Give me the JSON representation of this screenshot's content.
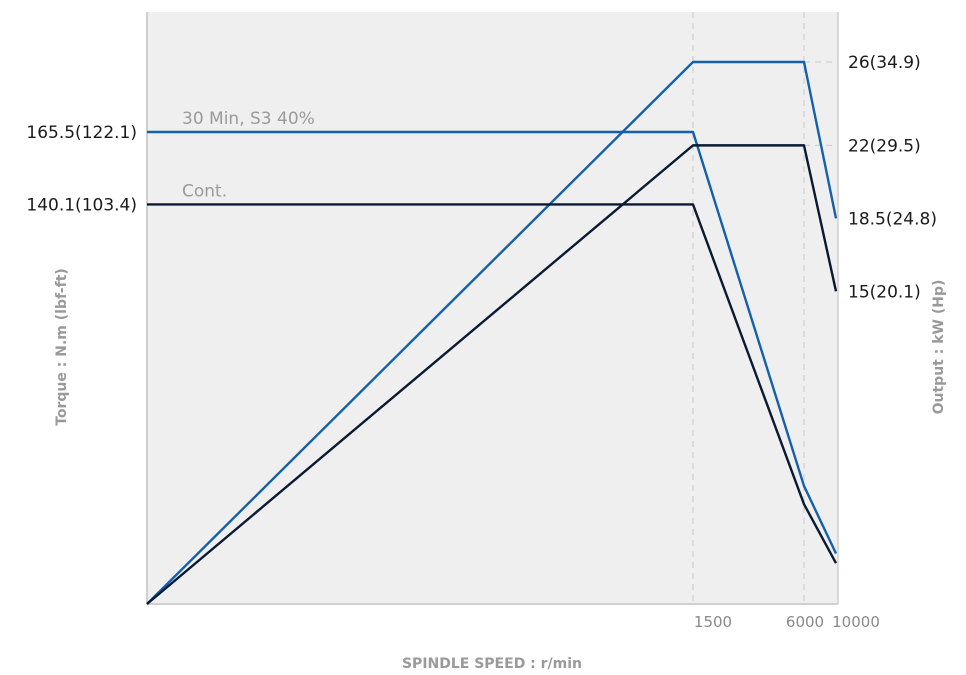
{
  "chart_data": {
    "type": "line",
    "title": "",
    "xlabel": "SPINDLE SPEED : r/min",
    "ylabel_left": "Torque : N.m (lbf-ft)",
    "ylabel_right": "Output : kW (Hp)",
    "x_tick_labels": [
      "1500",
      "6000",
      "10000"
    ],
    "grid": false,
    "series": [
      {
        "name": "30 Min, S3 40%",
        "color": "#1460aa",
        "torque_label": "165.5(122.1)",
        "output_labels": [
          "26(34.9)",
          "18.5(24.8)"
        ],
        "torque": {
          "x": [
            0,
            1500,
            6000,
            10000
          ],
          "y": [
            165.5,
            165.5,
            41.4,
            17.7
          ]
        },
        "output": {
          "x": [
            0,
            1500,
            6000,
            10000
          ],
          "y": [
            0,
            26,
            26,
            18.5
          ]
        }
      },
      {
        "name": "Cont.",
        "color": "#0b1a33",
        "torque_label": "140.1(103.4)",
        "output_labels": [
          "22(29.5)",
          "15(20.1)"
        ],
        "torque": {
          "x": [
            0,
            1500,
            6000,
            10000
          ],
          "y": [
            140.1,
            140.1,
            35.0,
            14.3
          ]
        },
        "output": {
          "x": [
            0,
            1500,
            6000,
            10000
          ],
          "y": [
            0,
            22,
            22,
            15
          ]
        }
      }
    ]
  }
}
